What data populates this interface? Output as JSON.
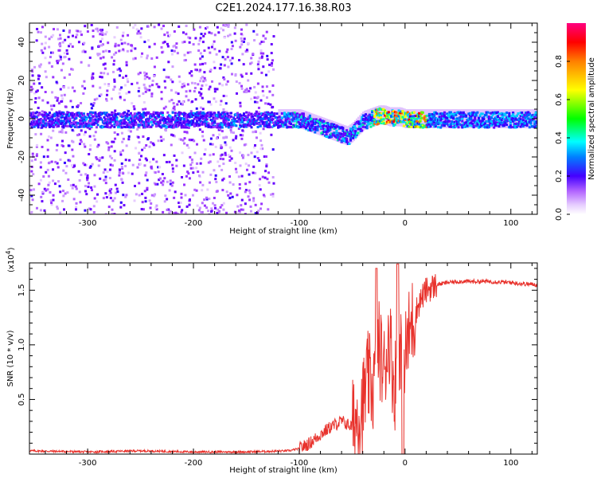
{
  "title": "C2E1.2024.177.16.38.R03",
  "chart_data": [
    {
      "type": "heatmap",
      "xlabel": "Height of straight line (km)",
      "ylabel": "Frequency (Hz)",
      "xlim": [
        -355,
        125
      ],
      "ylim": [
        -50,
        50
      ],
      "xticks": [
        -300,
        -200,
        -100,
        0,
        100
      ],
      "yticks": [
        -40,
        -20,
        0,
        20,
        40
      ],
      "grid": false,
      "colorbar": {
        "label": "Normalized spectral amplitude",
        "range": [
          0,
          1
        ],
        "ticks": [
          0.0,
          0.2,
          0.4,
          0.6,
          0.8
        ],
        "colormap": [
          "#ffffff",
          "#d9b3ff",
          "#9900ff",
          "#3300ff",
          "#0099ff",
          "#00ffff",
          "#00ff00",
          "#ffff00",
          "#ff9900",
          "#ff0000",
          "#ff0080"
        ]
      },
      "ridge": {
        "x": [
          -355,
          -330,
          -300,
          -270,
          -240,
          -210,
          -180,
          -150,
          -130,
          -110,
          -100,
          -90,
          -80,
          -70,
          -60,
          -55,
          -50,
          -45,
          -40,
          -35,
          -30,
          -25,
          -20,
          -15,
          -10,
          -5,
          0,
          10,
          20,
          40,
          60,
          80,
          100,
          125
        ],
        "y": [
          0,
          0,
          0,
          0,
          0,
          0,
          0,
          0,
          0,
          0,
          0,
          -2,
          -4,
          -6,
          -8,
          -9,
          -7,
          -4,
          -1,
          0,
          1,
          2,
          2,
          1,
          1,
          1,
          0,
          0,
          0,
          0,
          0,
          0,
          0,
          0
        ]
      }
    },
    {
      "type": "line",
      "xlabel": "Height of straight line (km)",
      "ylabel": "SNR (10 * v/v)",
      "scale_label": "(x10",
      "scale_exponent": "4",
      "scale_close": ")",
      "xlim": [
        -355,
        125
      ],
      "ylim": [
        0,
        1.75
      ],
      "xticks": [
        -300,
        -200,
        -100,
        0,
        100
      ],
      "yticks": [
        0.5,
        1.0,
        1.5
      ],
      "grid": false,
      "series": [
        {
          "color": "#e8322c",
          "x": [
            -355,
            -300,
            -250,
            -200,
            -150,
            -110,
            -100,
            -90,
            -80,
            -70,
            -60,
            -50,
            -40,
            -35,
            -30,
            -25,
            -20,
            -15,
            -10,
            -5,
            0,
            5,
            10,
            15,
            20,
            30,
            40,
            50,
            60,
            80,
            100,
            110,
            125
          ],
          "y": [
            0.03,
            0.02,
            0.03,
            0.02,
            0.02,
            0.03,
            0.05,
            0.1,
            0.18,
            0.25,
            0.3,
            0.25,
            0.45,
            0.7,
            0.6,
            1.0,
            0.75,
            1.1,
            0.6,
            1.05,
            0.9,
            1.15,
            1.3,
            1.42,
            1.5,
            1.55,
            1.57,
            1.58,
            1.58,
            1.58,
            1.57,
            1.56,
            1.55
          ]
        }
      ]
    }
  ]
}
